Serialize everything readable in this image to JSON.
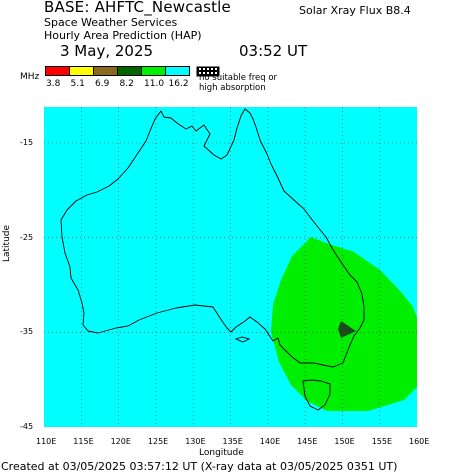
{
  "header": {
    "base": "BASE: AHFTC_Newcastle",
    "line1": "Space Weather Services",
    "line2": "Hourly Area Prediction (HAP)",
    "flux": "Solar Xray Flux B8.4",
    "date": "3 May, 2025",
    "time": "03:52 UT"
  },
  "legend": {
    "unit": "MHz",
    "values": [
      "3.8",
      "5.1",
      "6.9",
      "8.2",
      "11.0",
      "16.2"
    ],
    "colors": [
      "#ff0000",
      "#ffff00",
      "#8b6a1f",
      "#006400",
      "#00ee00",
      "#00ffff"
    ],
    "note_line1": "no suitable freq or",
    "note_line2": "high absorption"
  },
  "map": {
    "background_color": "#00ffff",
    "coverage_color": "#00ee00",
    "y_ticks": [
      "-15",
      "-25",
      "-35",
      "-45"
    ],
    "x_ticks": [
      "110E",
      "115E",
      "120E",
      "125E",
      "130E",
      "135E",
      "140E",
      "145E",
      "150E",
      "155E",
      "160E"
    ],
    "xlabel": "Longitude",
    "ylabel": "Latitude",
    "grid": true
  },
  "footer": {
    "created": "Created at 03/05/2025 03:57:12 UT (X-ray data at 03/05/2025 0351 UT)"
  }
}
